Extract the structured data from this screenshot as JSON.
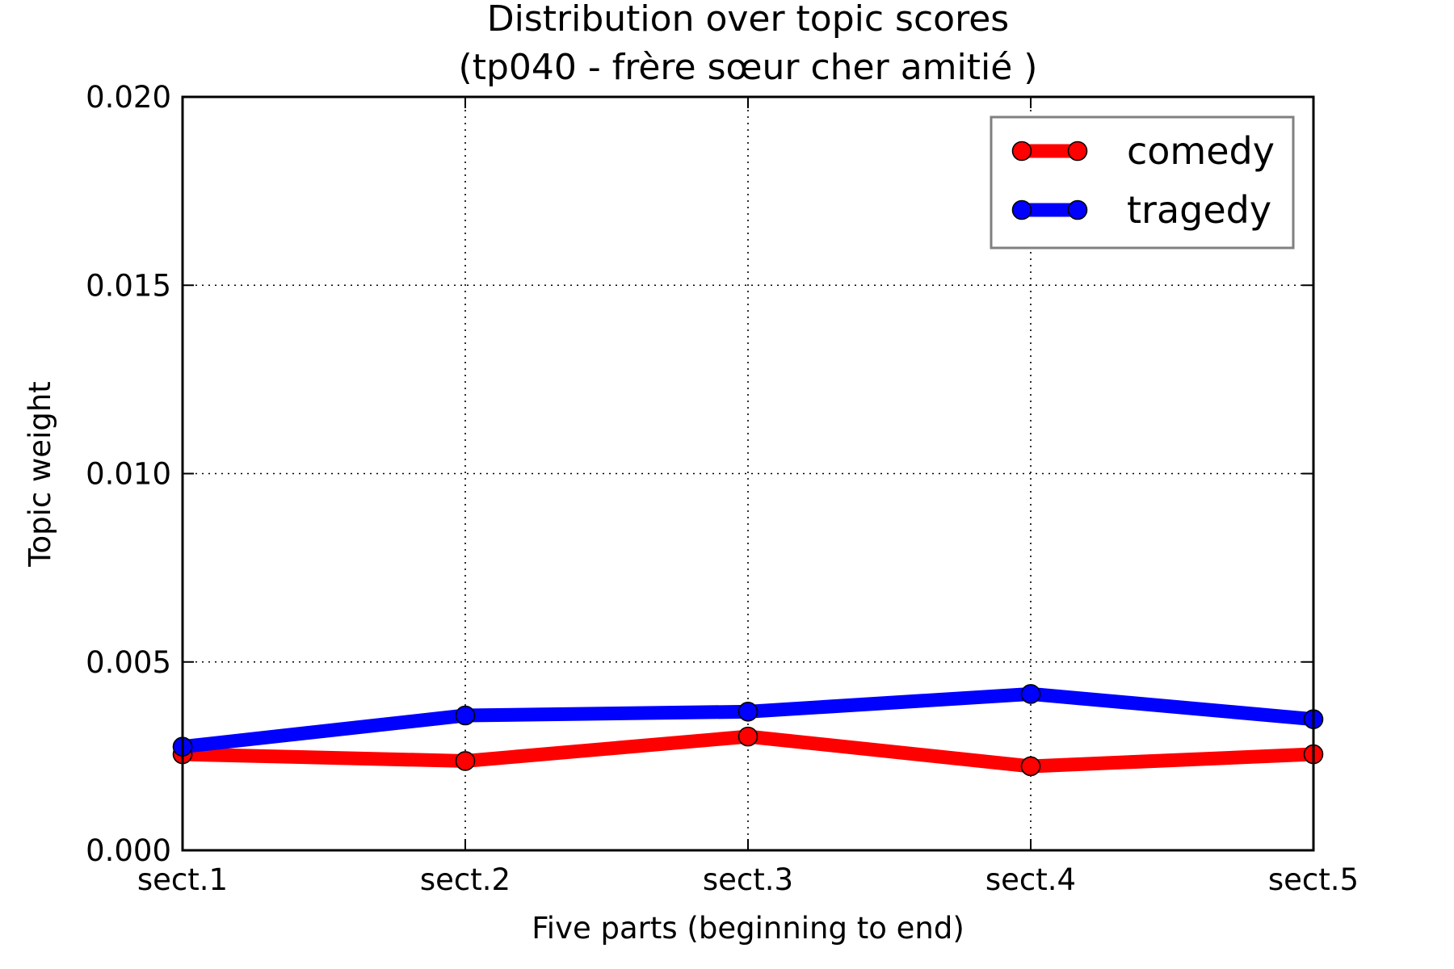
{
  "chart_data": {
    "type": "line",
    "title": "Distribution over topic scores",
    "subtitle": "(tp040 - frère sœur cher amitié )",
    "xlabel": "Five parts (beginning to end)",
    "ylabel": "Topic weight",
    "categories": [
      "sect.1",
      "sect.2",
      "sect.3",
      "sect.4",
      "sect.5"
    ],
    "ylim": [
      0,
      0.02
    ],
    "yticks": [
      "0.000",
      "0.005",
      "0.010",
      "0.015",
      "0.020"
    ],
    "grid": true,
    "legend": "top-right",
    "series": [
      {
        "name": "comedy",
        "color": "#ff0000",
        "values": [
          0.00255,
          0.00237,
          0.00302,
          0.00223,
          0.00255
        ]
      },
      {
        "name": "tragedy",
        "color": "#0000ff",
        "values": [
          0.00275,
          0.00358,
          0.00368,
          0.00415,
          0.00348
        ]
      }
    ]
  }
}
